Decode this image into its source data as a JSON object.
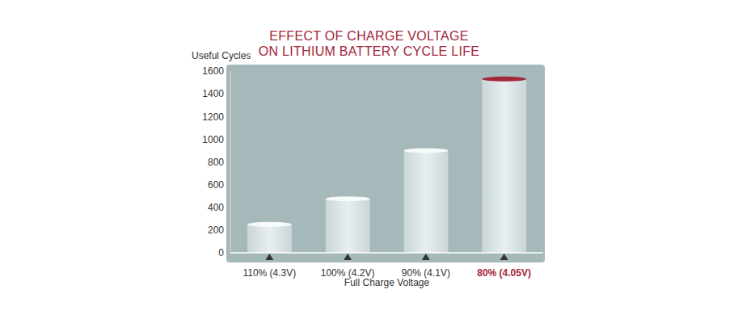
{
  "chart_data": {
    "type": "bar",
    "title": "EFFECT OF CHARGE VOLTAGE\nON LITHIUM BATTERY CYCLE LIFE",
    "y_label": "Useful Cycles",
    "x_label": "Full Charge Voltage",
    "categories": [
      "110% (4.3V)",
      "100% (4.2V)",
      "90% (4.1V)",
      "80% (4.05V)"
    ],
    "values": [
      250,
      475,
      900,
      1530
    ],
    "color": "#e9eff0",
    "ylim": [
      0,
      1600
    ],
    "yticks": [
      0,
      200,
      400,
      600,
      800,
      1000,
      1200,
      1400,
      1600
    ],
    "grid": false
  }
}
